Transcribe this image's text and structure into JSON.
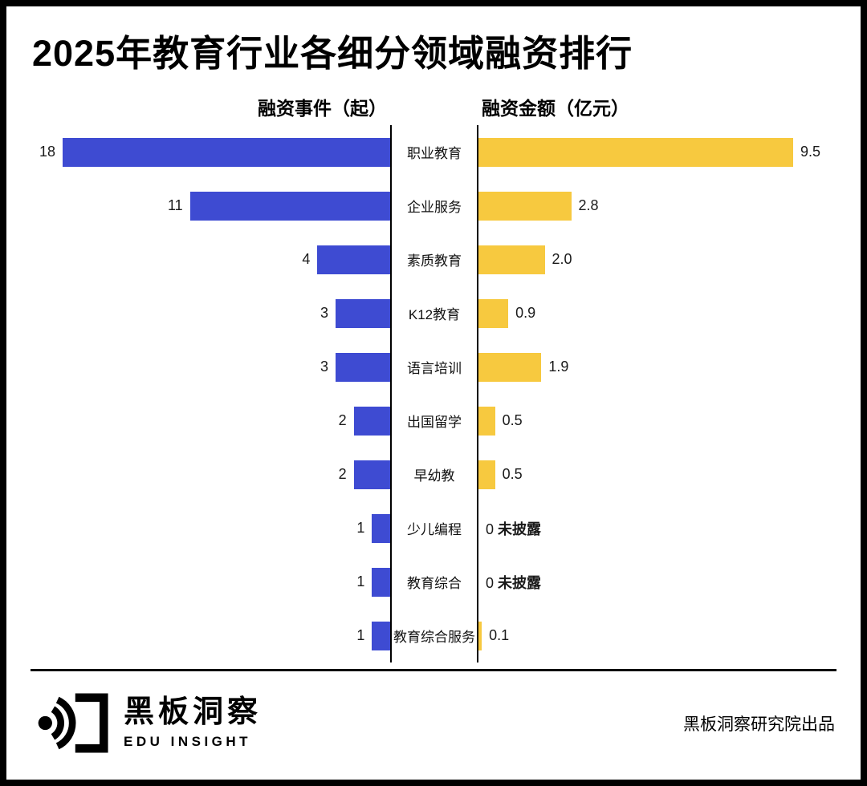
{
  "chart_data": {
    "type": "bar",
    "variant": "bidirectional-tornado",
    "title": "2025年教育行业各细分领域融资排行",
    "left_axis_title": "融资事件（起）",
    "right_axis_title": "融资金额（亿元）",
    "categories": [
      "职业教育",
      "企业服务",
      "素质教育",
      "K12教育",
      "语言培训",
      "出国留学",
      "早幼教",
      "少儿编程",
      "教育综合",
      "教育综合服务"
    ],
    "series": [
      {
        "name": "融资事件（起）",
        "side": "left",
        "color": "#3E4BD2",
        "max": 18,
        "values": [
          18,
          11,
          4,
          3,
          3,
          2,
          2,
          1,
          1,
          1
        ],
        "labels": [
          "18",
          "11",
          "4",
          "3",
          "3",
          "2",
          "2",
          "1",
          "1",
          "1"
        ]
      },
      {
        "name": "融资金额（亿元）",
        "side": "right",
        "color": "#F7C93F",
        "max": 9.5,
        "values": [
          9.5,
          2.8,
          2.0,
          0.9,
          1.9,
          0.5,
          0.5,
          0,
          0,
          0.1
        ],
        "labels": [
          "9.5",
          "2.8",
          "2.0",
          "0.9",
          "1.9",
          "0.5",
          "0.5",
          "0",
          "0",
          "0.1"
        ]
      }
    ],
    "undisclosed_text": "未披露",
    "undisclosed_rows": [
      7,
      8
    ],
    "legend_position": "none",
    "grid": false
  },
  "footer": {
    "brand_cn": "黑板洞察",
    "brand_en": "EDU INSIGHT",
    "credit": "黑板洞察研究院出品"
  },
  "colors": {
    "events_blue": "#3E4BD2",
    "amount_yellow": "#F7C93F",
    "frame_black": "#000000"
  }
}
